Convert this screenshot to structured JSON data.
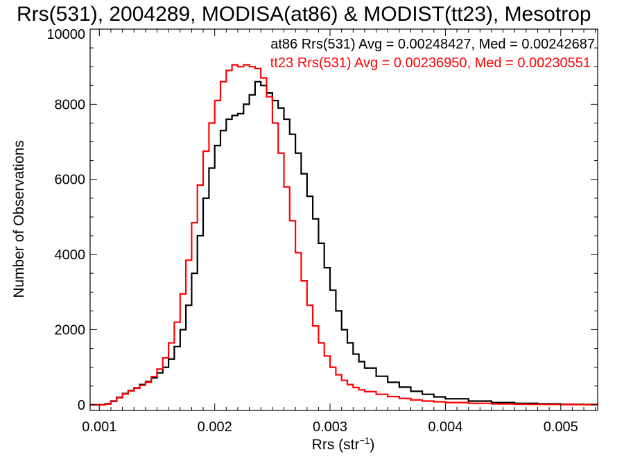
{
  "chart_data": {
    "type": "line",
    "title": "Rrs(531), 2004289, MODISA(at86) & MODIST(tt23), Mesotrop",
    "xlabel": "Rrs (str",
    "xlabel_sup": "−1",
    "xlabel_close": ")",
    "ylabel": "Number of Observations",
    "xlim": [
      0.00092,
      0.00532
    ],
    "ylim": [
      -150,
      10000
    ],
    "xticks": [
      0.001,
      0.002,
      0.003,
      0.004,
      0.005
    ],
    "xtick_labels": [
      "0.001",
      "0.002",
      "0.003",
      "0.004",
      "0.005"
    ],
    "yticks": [
      0,
      2000,
      4000,
      6000,
      8000,
      10000
    ],
    "ytick_labels": [
      "0",
      "2000",
      "4000",
      "6000",
      "8000",
      "10000"
    ],
    "grid": false,
    "legend_position": "top-right",
    "series": [
      {
        "name": "at86",
        "color": "#000000",
        "annotation": "at86 Rrs(531) Avg = 0.00248427, Med = 0.00242687",
        "x": [
          0.00092,
          0.001,
          0.00105,
          0.0011,
          0.00115,
          0.0012,
          0.00125,
          0.0013,
          0.00135,
          0.0014,
          0.00145,
          0.0015,
          0.00155,
          0.0016,
          0.00165,
          0.0017,
          0.00175,
          0.0018,
          0.00185,
          0.0019,
          0.00195,
          0.002,
          0.00205,
          0.0021,
          0.00215,
          0.0022,
          0.00225,
          0.0023,
          0.00235,
          0.0024,
          0.00245,
          0.0025,
          0.00255,
          0.0026,
          0.00265,
          0.0027,
          0.00275,
          0.0028,
          0.00285,
          0.0029,
          0.00295,
          0.003,
          0.00305,
          0.0031,
          0.00315,
          0.0032,
          0.00325,
          0.0033,
          0.0034,
          0.0035,
          0.0036,
          0.0037,
          0.0038,
          0.0039,
          0.004,
          0.0042,
          0.0044,
          0.0046,
          0.0048,
          0.005,
          0.0052,
          0.00532
        ],
        "y": [
          0,
          0,
          30,
          100,
          200,
          300,
          380,
          450,
          540,
          620,
          720,
          850,
          1000,
          1220,
          1550,
          2000,
          2650,
          3500,
          4500,
          5500,
          6300,
          6900,
          7300,
          7600,
          7700,
          7750,
          8000,
          8250,
          8600,
          8500,
          8300,
          8100,
          7900,
          7600,
          7200,
          6700,
          6150,
          5550,
          4950,
          4300,
          3650,
          3050,
          2500,
          2000,
          1650,
          1350,
          1150,
          980,
          760,
          600,
          470,
          360,
          280,
          210,
          160,
          100,
          60,
          40,
          25,
          15,
          8,
          5
        ]
      },
      {
        "name": "tt23",
        "color": "#ff0000",
        "annotation": "tt23 Rrs(531) Avg = 0.00236950, Med = 0.00230551",
        "x": [
          0.00092,
          0.001,
          0.00105,
          0.0011,
          0.00115,
          0.0012,
          0.00125,
          0.0013,
          0.00135,
          0.0014,
          0.00145,
          0.0015,
          0.00155,
          0.0016,
          0.00165,
          0.0017,
          0.00175,
          0.0018,
          0.00185,
          0.0019,
          0.00195,
          0.002,
          0.00205,
          0.0021,
          0.00215,
          0.0022,
          0.00225,
          0.0023,
          0.00235,
          0.0024,
          0.00245,
          0.0025,
          0.00255,
          0.0026,
          0.00265,
          0.0027,
          0.00275,
          0.0028,
          0.00285,
          0.0029,
          0.00295,
          0.003,
          0.00305,
          0.0031,
          0.00315,
          0.0032,
          0.00325,
          0.0033,
          0.0034,
          0.0035,
          0.0036,
          0.0037,
          0.0038,
          0.0039,
          0.004,
          0.0042,
          0.0044,
          0.0046,
          0.0048,
          0.005,
          0.0052,
          0.00532
        ],
        "y": [
          0,
          0,
          20,
          90,
          190,
          290,
          370,
          440,
          520,
          600,
          750,
          950,
          1250,
          1650,
          2200,
          2950,
          3850,
          4850,
          5850,
          6750,
          7500,
          8100,
          8600,
          8900,
          9050,
          9000,
          9050,
          9000,
          8950,
          8700,
          8200,
          7500,
          6700,
          5800,
          4900,
          4050,
          3300,
          2650,
          2100,
          1650,
          1300,
          1000,
          800,
          650,
          540,
          460,
          400,
          350,
          280,
          220,
          170,
          130,
          100,
          80,
          60,
          40,
          25,
          15,
          10,
          6,
          3,
          2
        ]
      }
    ]
  }
}
